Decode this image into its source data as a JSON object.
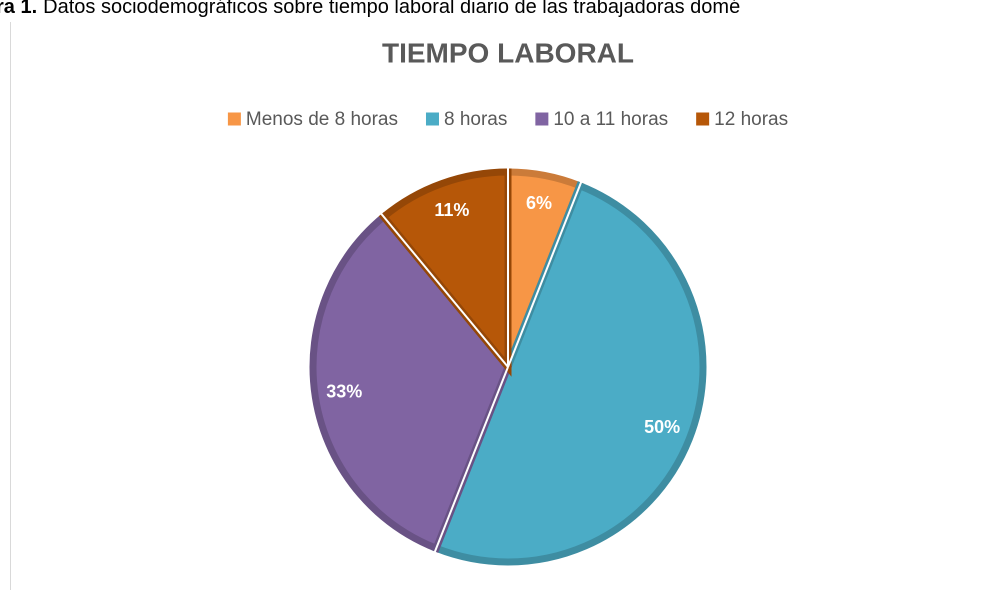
{
  "caption": {
    "label": "ra 1.",
    "text": "Datos sociodemográficos sobre tiempo laboral diario de las trabajadoras domé"
  },
  "chart_data": {
    "type": "pie",
    "title": "TIEMPO LABORAL",
    "categories": [
      "Menos de 8 horas",
      "8 horas",
      "10 a 11 horas",
      "12 horas"
    ],
    "values": [
      6,
      50,
      33,
      11
    ],
    "value_labels": [
      "6%",
      "50%",
      "33%",
      "11%"
    ],
    "colors": [
      "#f79646",
      "#4bacc6",
      "#8064a2",
      "#b65708"
    ],
    "legend": "top"
  }
}
